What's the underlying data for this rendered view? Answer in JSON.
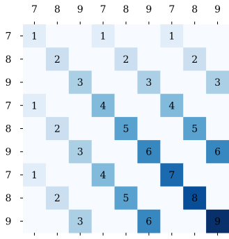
{
  "chart_data": {
    "type": "heatmap",
    "x": [
      "7",
      "8",
      "9",
      "7",
      "8",
      "9",
      "7",
      "8",
      "9"
    ],
    "y": [
      "7",
      "8",
      "9",
      "7",
      "8",
      "9",
      "7",
      "8",
      "9"
    ],
    "values": [
      [
        1,
        null,
        null,
        1,
        null,
        null,
        1,
        null,
        null
      ],
      [
        null,
        2,
        null,
        null,
        2,
        null,
        null,
        2,
        null
      ],
      [
        null,
        null,
        3,
        null,
        null,
        3,
        null,
        null,
        3
      ],
      [
        1,
        null,
        null,
        4,
        null,
        null,
        4,
        null,
        null
      ],
      [
        null,
        2,
        null,
        null,
        5,
        null,
        null,
        5,
        null
      ],
      [
        null,
        null,
        3,
        null,
        null,
        6,
        null,
        null,
        6
      ],
      [
        1,
        null,
        null,
        4,
        null,
        null,
        7,
        null,
        null
      ],
      [
        null,
        2,
        null,
        null,
        5,
        null,
        null,
        8,
        null
      ],
      [
        null,
        null,
        3,
        null,
        null,
        6,
        null,
        null,
        9
      ]
    ],
    "clim": [
      0,
      9
    ],
    "colormap": [
      "#f7fbff",
      "#deebf7",
      "#c6dbef",
      "#9ecae1",
      "#6baed6",
      "#4292c6",
      "#2171b5",
      "#08519c",
      "#08306b"
    ]
  }
}
